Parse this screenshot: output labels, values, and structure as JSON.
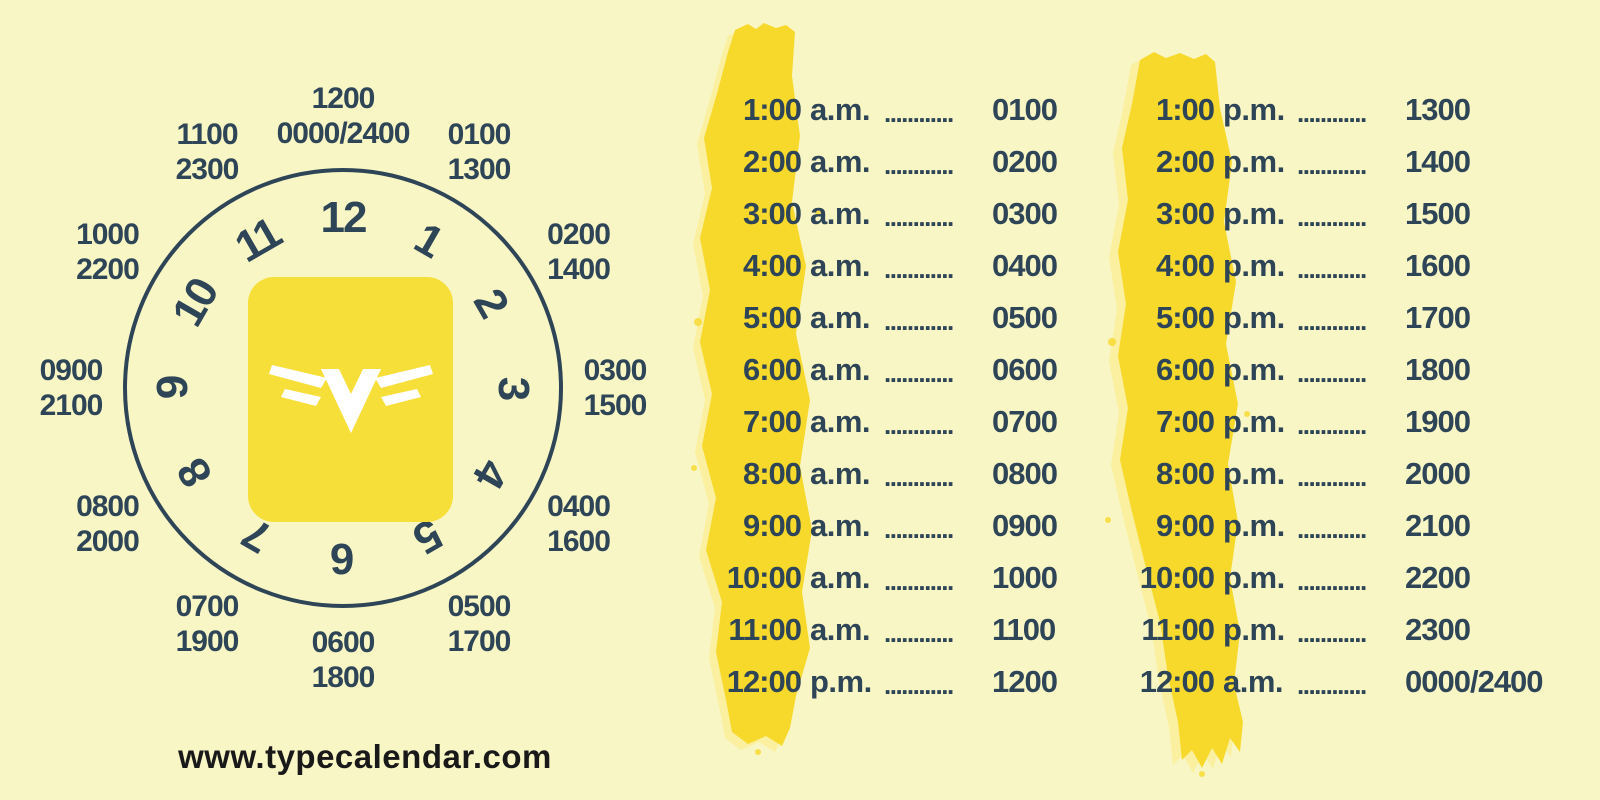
{
  "colors": {
    "background": "#F9F6C5",
    "navy": "#2E4557",
    "brush_yellow": "#F7D92B",
    "brush_fringe": "#FBEA7A",
    "logo_square_yellow": "#F7DF3A",
    "logo_glyph": "#FFFFFF",
    "url_text": "#191919"
  },
  "clock": {
    "logo_icon": "wings-v-icon",
    "hours": [
      "12",
      "1",
      "2",
      "3",
      "4",
      "5",
      "6",
      "7",
      "8",
      "9",
      "10",
      "11"
    ],
    "military_labels": [
      [
        "1200",
        "0000/2400"
      ],
      [
        "0100",
        "1300"
      ],
      [
        "0200",
        "1400"
      ],
      [
        "0300",
        "1500"
      ],
      [
        "0400",
        "1600"
      ],
      [
        "0500",
        "1700"
      ],
      [
        "0600",
        "1800"
      ],
      [
        "0700",
        "1900"
      ],
      [
        "0800",
        "2000"
      ],
      [
        "0900",
        "2100"
      ],
      [
        "1000",
        "2200"
      ],
      [
        "1100",
        "2300"
      ]
    ]
  },
  "tables": {
    "am": {
      "separator": "............",
      "rows": [
        {
          "time": "1:00",
          "suffix": "a.m.",
          "value": "0100"
        },
        {
          "time": "2:00",
          "suffix": "a.m.",
          "value": "0200"
        },
        {
          "time": "3:00",
          "suffix": "a.m.",
          "value": "0300"
        },
        {
          "time": "4:00",
          "suffix": "a.m.",
          "value": "0400"
        },
        {
          "time": "5:00",
          "suffix": "a.m.",
          "value": "0500"
        },
        {
          "time": "6:00",
          "suffix": "a.m.",
          "value": "0600"
        },
        {
          "time": "7:00",
          "suffix": "a.m.",
          "value": "0700"
        },
        {
          "time": "8:00",
          "suffix": "a.m.",
          "value": "0800"
        },
        {
          "time": "9:00",
          "suffix": "a.m.",
          "value": "0900"
        },
        {
          "time": "10:00",
          "suffix": "a.m.",
          "value": "1000"
        },
        {
          "time": "11:00",
          "suffix": "a.m.",
          "value": "1100"
        },
        {
          "time": "12:00",
          "suffix": "p.m.",
          "value": "1200"
        }
      ]
    },
    "pm": {
      "separator": "............",
      "rows": [
        {
          "time": "1:00",
          "suffix": "p.m.",
          "value": "1300"
        },
        {
          "time": "2:00",
          "suffix": "p.m.",
          "value": "1400"
        },
        {
          "time": "3:00",
          "suffix": "p.m.",
          "value": "1500"
        },
        {
          "time": "4:00",
          "suffix": "p.m.",
          "value": "1600"
        },
        {
          "time": "5:00",
          "suffix": "p.m.",
          "value": "1700"
        },
        {
          "time": "6:00",
          "suffix": "p.m.",
          "value": "1800"
        },
        {
          "time": "7:00",
          "suffix": "p.m.",
          "value": "1900"
        },
        {
          "time": "8:00",
          "suffix": "p.m.",
          "value": "2000"
        },
        {
          "time": "9:00",
          "suffix": "p.m.",
          "value": "2100"
        },
        {
          "time": "10:00",
          "suffix": "p.m.",
          "value": "2200"
        },
        {
          "time": "11:00",
          "suffix": "p.m.",
          "value": "2300"
        },
        {
          "time": "12:00",
          "suffix": "a.m.",
          "value": "0000/2400"
        }
      ]
    }
  },
  "footer": {
    "url": "www.typecalendar.com"
  }
}
